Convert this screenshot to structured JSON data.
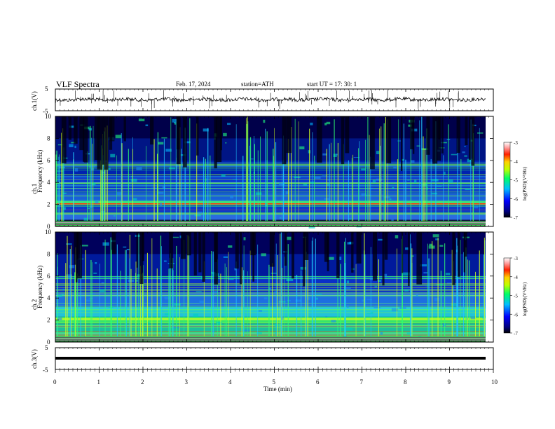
{
  "header": {
    "title": "VLF  Spectra",
    "date": "Feb. 17, 2024",
    "station": "station=ATH",
    "start_ut": "start  UT  =   17: 30: 1"
  },
  "chart_data": [
    {
      "type": "line",
      "panel": "ch1-waveform",
      "ylabel": "ch.1(V)",
      "ylim": [
        -5,
        5
      ],
      "yticks": [
        "5",
        "-5"
      ],
      "xlim": [
        0,
        10
      ]
    },
    {
      "type": "heatmap",
      "panel": "ch1-spectrogram",
      "ylabel": "ch.1\nFrequency (kHz)",
      "ylabel_lines": [
        "ch.1",
        "Frequency (kHz)"
      ],
      "ylim": [
        0,
        10
      ],
      "yticks": [
        "0",
        "2",
        "4",
        "6",
        "8",
        "10"
      ],
      "xlim": [
        0,
        10
      ],
      "colorbar": {
        "label": "log(PSD)(V²/Hz)",
        "range": [
          -7,
          -3
        ],
        "ticks": [
          "-3",
          "-4",
          "-5",
          "-6",
          "-7"
        ]
      }
    },
    {
      "type": "heatmap",
      "panel": "ch2-spectrogram",
      "ylabel": "ch.2\nFrequency (kHz)",
      "ylabel_lines": [
        "ch.2",
        "Frequency (kHz)"
      ],
      "ylim": [
        0,
        10
      ],
      "yticks": [
        "0",
        "2",
        "4",
        "6",
        "8",
        "10"
      ],
      "xlim": [
        0,
        10
      ],
      "colorbar": {
        "label": "log(PSD)(V²/Hz)",
        "range": [
          -7,
          -3
        ],
        "ticks": [
          "-3",
          "-4",
          "-5",
          "-6",
          "-7"
        ]
      }
    },
    {
      "type": "line",
      "panel": "ch3-waveform",
      "ylabel": "ch.3(V)",
      "ylim": [
        -5,
        5
      ],
      "yticks": [
        "5",
        "-5"
      ],
      "xlim": [
        0,
        10
      ],
      "xlabel": "Time  (min)",
      "xticks": [
        "0",
        "1",
        "2",
        "3",
        "4",
        "5",
        "6",
        "7",
        "8",
        "9",
        "10"
      ]
    }
  ],
  "colors": {
    "frame": "#000000",
    "background": "#ffffff"
  }
}
